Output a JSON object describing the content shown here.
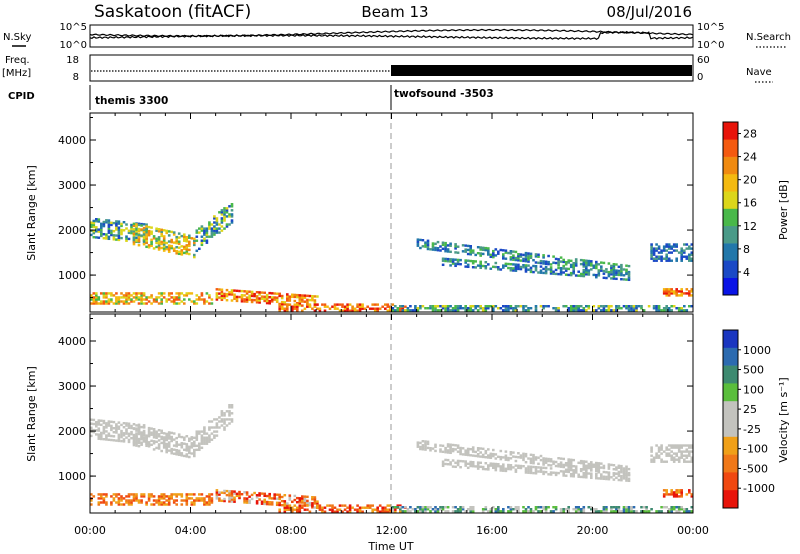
{
  "header": {
    "station": "Saskatoon (fitACF)",
    "beam": "Beam 13",
    "date": "08/Jul/2016"
  },
  "strip": {
    "nsky_label": "N.Sky",
    "nsky_ticks": [
      "10^5",
      "10^0"
    ],
    "nsearch_label": "N.Search",
    "nsearch_ticks": [
      "10^5",
      "10^0"
    ],
    "freq_label": "Freq.",
    "freq_unit": "[MHz]",
    "freq_ticks": [
      "18",
      "8"
    ],
    "nave_label": "Nave",
    "nave_ticks": [
      "60",
      "0"
    ],
    "cpid_label": "CPID",
    "cpid_segments": [
      "themis 3300",
      "twofsound -3503"
    ],
    "cpid_change_hour": 12
  },
  "colors": {
    "power": [
      "#0a14e6",
      "#1a49c6",
      "#2277aa",
      "#4a9a88",
      "#49b84a",
      "#dcd61a",
      "#f4ba10",
      "#f08a10",
      "#f45a10",
      "#e8140a"
    ],
    "velocity": [
      "#1a36c0",
      "#2c6bb0",
      "#3d8a70",
      "#5abe3c",
      "#c3c3be",
      "#c3c3be",
      "#f0a018",
      "#f07818",
      "#f04810",
      "#e8140a"
    ]
  },
  "chart_data": [
    {
      "type": "heatmap",
      "name": "power",
      "xlabel": "",
      "ylabel": "Slant Range [km]",
      "x_range_hours": [
        0,
        24
      ],
      "ylim": [
        180,
        4600
      ],
      "y_ticks": [
        "1000",
        "2000",
        "3000",
        "4000"
      ],
      "colorbar_label": "Power [dB]",
      "colorbar_ticks": [
        "4",
        "8",
        "12",
        "16",
        "20",
        "24",
        "28"
      ],
      "colorbar_range": [
        0,
        30
      ]
    },
    {
      "type": "heatmap",
      "name": "velocity",
      "xlabel": "Time UT",
      "ylabel": "Slant Range [km]",
      "x_range_hours": [
        0,
        24
      ],
      "x_ticks": [
        "00:00",
        "04:00",
        "08:00",
        "12:00",
        "16:00",
        "20:00",
        "00:00"
      ],
      "ylim": [
        180,
        4600
      ],
      "y_ticks": [
        "1000",
        "2000",
        "3000",
        "4000"
      ],
      "colorbar_label": "Velocity [m s⁻¹]",
      "colorbar_ticks": [
        "1000",
        "500",
        "100",
        "25",
        "-25",
        "-100",
        "-500",
        "-1000"
      ]
    }
  ]
}
